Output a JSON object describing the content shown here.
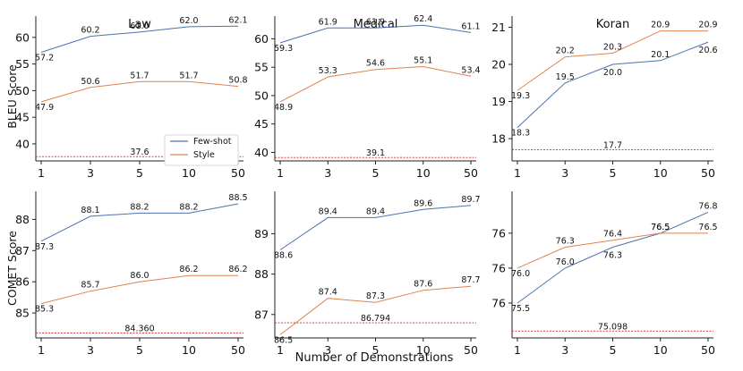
{
  "colors": {
    "few_shot": "#4C72B0",
    "style": "#DD8452",
    "baseline": "#d62728"
  },
  "common": {
    "x_label": "Number of Demonstrations",
    "bleu_label": "BLEU Score",
    "comet_label": "COMET Score"
  },
  "legend": {
    "items": [
      "Few-shot",
      "Style"
    ]
  },
  "chart_data": [
    {
      "id": "bleu-law",
      "type": "line",
      "title": "Law",
      "x": [
        "1",
        "3",
        "5",
        "10",
        "50"
      ],
      "ylim": [
        36.8,
        64
      ],
      "yticks": [
        40,
        45,
        50,
        55,
        60
      ],
      "series": [
        {
          "name": "Few-shot",
          "values": [
            57.2,
            60.2,
            61.0,
            62.0,
            62.1
          ],
          "labels": [
            "57.2",
            "60.2",
            "61.0",
            "62.0",
            "62.1"
          ]
        },
        {
          "name": "Style",
          "values": [
            47.9,
            50.6,
            51.7,
            51.7,
            50.8
          ],
          "labels": [
            "47.9",
            "50.6",
            "51.7",
            "51.7",
            "50.8"
          ]
        }
      ],
      "baseline": {
        "value": 37.6,
        "label": "37.6"
      }
    },
    {
      "id": "bleu-medical",
      "type": "line",
      "title": "Medical",
      "x": [
        "1",
        "3",
        "5",
        "10",
        "50"
      ],
      "ylim": [
        38.5,
        64
      ],
      "yticks": [
        40,
        45,
        50,
        55,
        60
      ],
      "series": [
        {
          "name": "Few-shot",
          "values": [
            59.3,
            61.9,
            61.9,
            62.4,
            61.1
          ],
          "labels": [
            "59.3",
            "61.9",
            "61.9",
            "62.4",
            "61.1"
          ]
        },
        {
          "name": "Style",
          "values": [
            48.9,
            53.3,
            54.6,
            55.1,
            53.4
          ],
          "labels": [
            "48.9",
            "53.3",
            "54.6",
            "55.1",
            "53.4"
          ]
        }
      ],
      "baseline": {
        "value": 39.1,
        "label": "39.1"
      }
    },
    {
      "id": "bleu-koran",
      "type": "line",
      "title": "Koran",
      "x": [
        "1",
        "3",
        "5",
        "10",
        "50"
      ],
      "ylim": [
        17.4,
        21.3
      ],
      "yticks": [
        18,
        19,
        20,
        21
      ],
      "series": [
        {
          "name": "Few-shot",
          "values": [
            18.3,
            19.5,
            20.0,
            20.1,
            20.6
          ],
          "labels": [
            "18.3",
            "19.5",
            "20.0",
            "20.1",
            "20.6"
          ]
        },
        {
          "name": "Style",
          "values": [
            19.3,
            20.2,
            20.3,
            20.9,
            20.9
          ],
          "labels": [
            "19.3",
            "20.2",
            "20.3",
            "20.9",
            "20.9"
          ]
        }
      ],
      "baseline": {
        "value": 17.7,
        "label": "17.7"
      }
    },
    {
      "id": "comet-law",
      "type": "line",
      "title": "",
      "x": [
        "1",
        "3",
        "5",
        "10",
        "50"
      ],
      "ylim": [
        84.2,
        88.9
      ],
      "yticks": [
        85,
        86,
        87,
        88
      ],
      "series": [
        {
          "name": "Few-shot",
          "values": [
            87.3,
            88.1,
            88.2,
            88.2,
            88.5
          ],
          "labels": [
            "87.3",
            "88.1",
            "88.2",
            "88.2",
            "88.5"
          ]
        },
        {
          "name": "Style",
          "values": [
            85.3,
            85.7,
            86.0,
            86.2,
            86.2
          ],
          "labels": [
            "85.3",
            "85.7",
            "86.0",
            "86.2",
            "86.2"
          ]
        }
      ],
      "baseline": {
        "value": 84.36,
        "label": "84.360"
      }
    },
    {
      "id": "comet-medical",
      "type": "line",
      "title": "",
      "x": [
        "1",
        "3",
        "5",
        "10",
        "50"
      ],
      "ylim": [
        86.42,
        90.05
      ],
      "yticks": [
        87,
        88,
        89
      ],
      "series": [
        {
          "name": "Few-shot",
          "values": [
            88.6,
            89.4,
            89.4,
            89.6,
            89.7
          ],
          "labels": [
            "88.6",
            "89.4",
            "89.4",
            "89.6",
            "89.7"
          ]
        },
        {
          "name": "Style",
          "values": [
            86.5,
            87.4,
            87.3,
            87.6,
            87.7
          ],
          "labels": [
            "86.5",
            "87.4",
            "87.3",
            "87.6",
            "87.7"
          ]
        }
      ],
      "baseline": {
        "value": 86.794,
        "label": "86.794"
      }
    },
    {
      "id": "comet-koran",
      "type": "line",
      "title": "",
      "x": [
        "1",
        "3",
        "5",
        "10",
        "50"
      ],
      "ylim": [
        75.0,
        77.1
      ],
      "yticks": [
        75.5,
        76.0,
        76.5
      ],
      "ytick_labels": [
        "76",
        "76",
        "76"
      ],
      "series": [
        {
          "name": "Few-shot",
          "values": [
            75.5,
            76.0,
            76.3,
            76.5,
            76.8
          ],
          "labels": [
            "75.5",
            "76.0",
            "76.3",
            "76.5",
            "76.8"
          ]
        },
        {
          "name": "Style",
          "values": [
            76.0,
            76.3,
            76.4,
            76.5,
            76.5
          ],
          "labels": [
            "76.0",
            "76.3",
            "76.4",
            "76.5",
            "76.5"
          ]
        }
      ],
      "baseline": {
        "value": 75.098,
        "label": "75.098"
      }
    }
  ]
}
